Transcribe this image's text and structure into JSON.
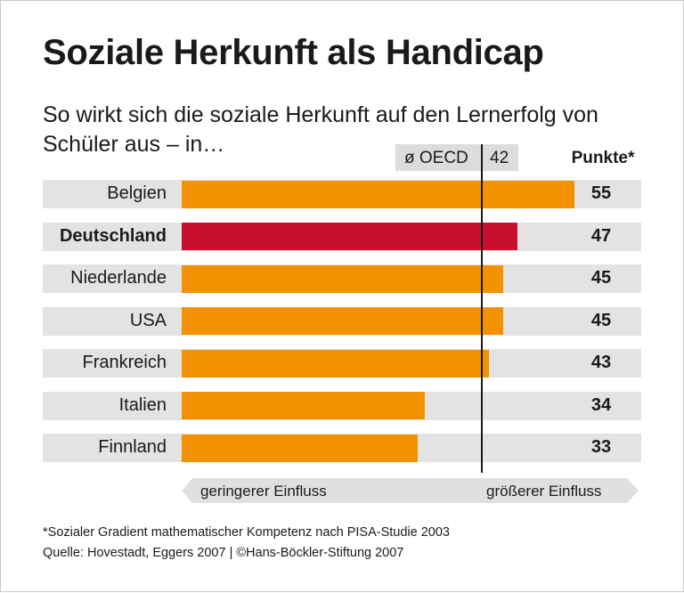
{
  "title": "Soziale Herkunft als Handicap",
  "subtitle": "So wirkt sich die soziale Herkunft auf den Lernerfolg von Schüler aus – in…",
  "oecd": {
    "label": "ø OECD",
    "value": 42
  },
  "value_header": "Punkte*",
  "arrow": {
    "left": "geringerer Einfluss",
    "right": "größerer Einfluss"
  },
  "footnote": "*Sozialer Gradient mathematischer Kompetenz nach PISA-Studie 2003",
  "source": "Quelle: Hovestadt, Eggers 2007 | ©Hans-Böckler-Stiftung 2007",
  "colors": {
    "bar": "#f39200",
    "highlight": "#c8102e",
    "row_bg": "#e3e3e3",
    "oecd_box": "#dcdcdc"
  },
  "chart_data": {
    "type": "bar",
    "orientation": "horizontal",
    "title": "Soziale Herkunft als Handicap",
    "categories": [
      "Belgien",
      "Deutschland",
      "Niederlande",
      "USA",
      "Frankreich",
      "Italien",
      "Finnland"
    ],
    "values": [
      55,
      47,
      45,
      45,
      43,
      34,
      33
    ],
    "highlight": "Deutschland",
    "reference_line": {
      "label": "ø OECD",
      "value": 42
    },
    "xlim": [
      0,
      57
    ],
    "grid": false
  }
}
